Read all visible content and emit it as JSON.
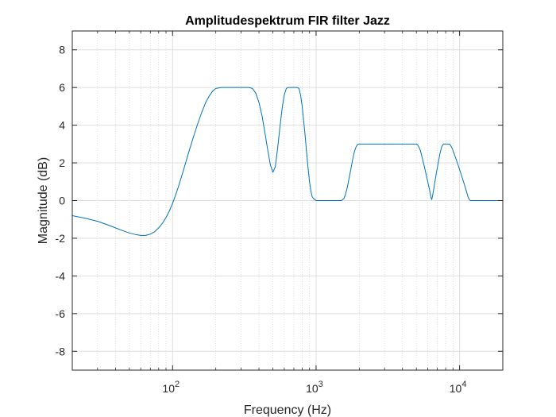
{
  "chart_data": {
    "type": "line",
    "title": "Amplitudespektrum FIR filter Jazz",
    "xlabel": "Frequency (Hz)",
    "ylabel": "Magnitude (dB)",
    "xscale": "log",
    "xlim": [
      20,
      20000
    ],
    "ylim": [
      -9,
      9
    ],
    "grid": true,
    "x_ticks": [
      {
        "value": 100,
        "base": "10",
        "exp": "2"
      },
      {
        "value": 1000,
        "base": "10",
        "exp": "3"
      },
      {
        "value": 10000,
        "base": "10",
        "exp": "4"
      }
    ],
    "y_ticks": [
      -8,
      -6,
      -4,
      -2,
      0,
      2,
      4,
      6,
      8
    ],
    "line_color": "#0072bd",
    "series": [
      {
        "x": [
          20,
          25,
          30,
          35,
          40,
          45,
          50,
          55,
          60,
          65,
          70,
          75,
          80,
          85,
          90,
          95,
          100,
          105,
          110,
          120,
          130,
          140,
          150,
          160,
          170,
          180,
          190,
          200,
          220,
          250,
          300,
          340,
          360,
          380,
          400,
          420,
          440,
          460,
          480,
          500,
          520,
          540,
          560,
          580,
          600,
          620,
          640,
          660,
          680,
          700,
          720,
          740,
          760,
          780,
          800,
          820,
          840,
          860,
          880,
          900,
          920,
          940,
          960,
          980,
          1000,
          1020,
          1050,
          1100,
          1200,
          1300,
          1400,
          1500,
          1560,
          1600,
          1650,
          1700,
          1750,
          1800,
          1850,
          1900,
          1950,
          2000,
          2050,
          2100,
          2500,
          3000,
          3500,
          4000,
          4500,
          5000,
          5100,
          5200,
          5300,
          5400,
          5500,
          5600,
          5700,
          5800,
          5900,
          6000,
          6100,
          6200,
          6300,
          6400,
          6500,
          6700,
          6900,
          7100,
          7300,
          7500,
          7700,
          7900,
          8100,
          8300,
          8500,
          8700,
          8900,
          9100,
          9300,
          9500,
          9700,
          9900,
          10100,
          10300,
          10500,
          10700,
          10900,
          11100,
          11300,
          11500,
          11700,
          11900,
          12100,
          12300,
          12500,
          13000,
          14000,
          16000,
          18000,
          20000
        ],
        "y": [
          -0.8,
          -0.95,
          -1.1,
          -1.28,
          -1.45,
          -1.6,
          -1.72,
          -1.8,
          -1.85,
          -1.85,
          -1.78,
          -1.65,
          -1.45,
          -1.2,
          -0.9,
          -0.55,
          -0.15,
          0.3,
          0.75,
          1.7,
          2.6,
          3.4,
          4.1,
          4.7,
          5.2,
          5.55,
          5.8,
          5.95,
          6.0,
          6.0,
          6.0,
          6.0,
          5.95,
          5.7,
          5.2,
          4.5,
          3.6,
          2.7,
          1.9,
          1.5,
          1.8,
          2.8,
          3.9,
          4.9,
          5.6,
          5.95,
          6.0,
          6.0,
          6.0,
          6.0,
          6.0,
          6.0,
          5.95,
          5.6,
          5.0,
          4.2,
          3.4,
          2.5,
          1.7,
          1.0,
          0.5,
          0.2,
          0.1,
          0.05,
          0.0,
          0.0,
          0.0,
          0.0,
          0.0,
          0.0,
          0.0,
          0.0,
          0.1,
          0.3,
          0.7,
          1.2,
          1.7,
          2.2,
          2.6,
          2.85,
          2.98,
          3.0,
          3.0,
          3.0,
          3.0,
          3.0,
          3.0,
          3.0,
          3.0,
          3.0,
          2.95,
          2.85,
          2.7,
          2.5,
          2.25,
          2.0,
          1.75,
          1.5,
          1.25,
          1.0,
          0.75,
          0.5,
          0.2,
          0.05,
          0.3,
          0.9,
          1.5,
          2.0,
          2.5,
          2.85,
          3.0,
          3.0,
          3.0,
          3.0,
          3.0,
          2.9,
          2.75,
          2.55,
          2.35,
          2.15,
          1.95,
          1.75,
          1.55,
          1.35,
          1.15,
          0.95,
          0.75,
          0.55,
          0.35,
          0.15,
          0.05,
          0.0,
          0.0,
          0.0,
          0.0,
          0.0,
          0.0,
          0.0,
          0.0,
          0.0
        ]
      }
    ]
  }
}
